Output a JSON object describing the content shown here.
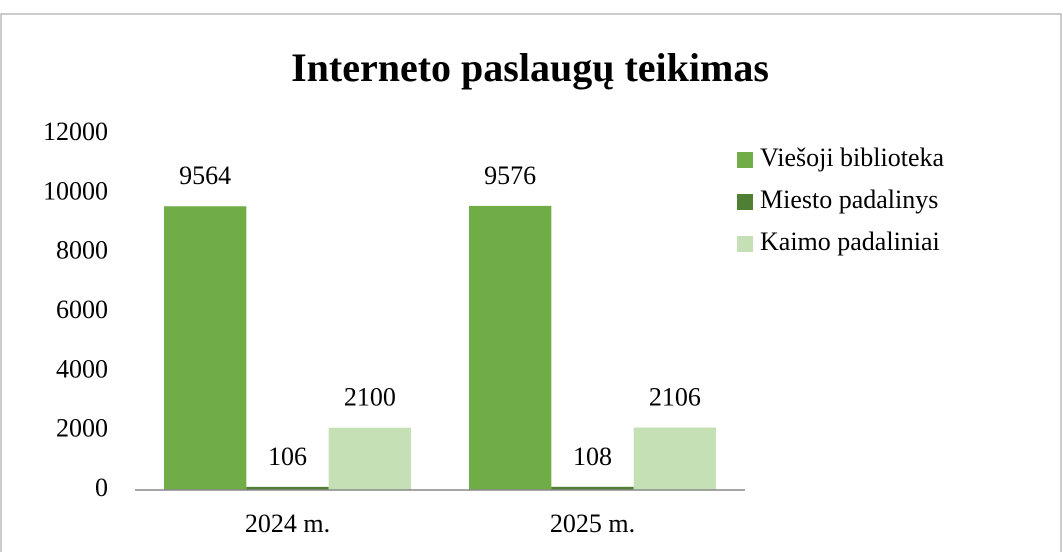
{
  "chart_data": {
    "type": "bar",
    "title": "Interneto paslaugų teikimas",
    "categories": [
      "2024 m.",
      "2025 m."
    ],
    "series": [
      {
        "name": "Viešoji biblioteka",
        "color": "#70ad47",
        "values": [
          9564,
          9576
        ]
      },
      {
        "name": "Miesto padalinys",
        "color": "#4f7f33",
        "values": [
          106,
          108
        ]
      },
      {
        "name": "Kaimo padaliniai",
        "color": "#c5e0b4",
        "values": [
          2100,
          2106
        ]
      }
    ],
    "ylim": [
      0,
      12000
    ],
    "yticks": [
      0,
      2000,
      4000,
      6000,
      8000,
      10000,
      12000
    ],
    "grid": false,
    "legend": "right"
  }
}
